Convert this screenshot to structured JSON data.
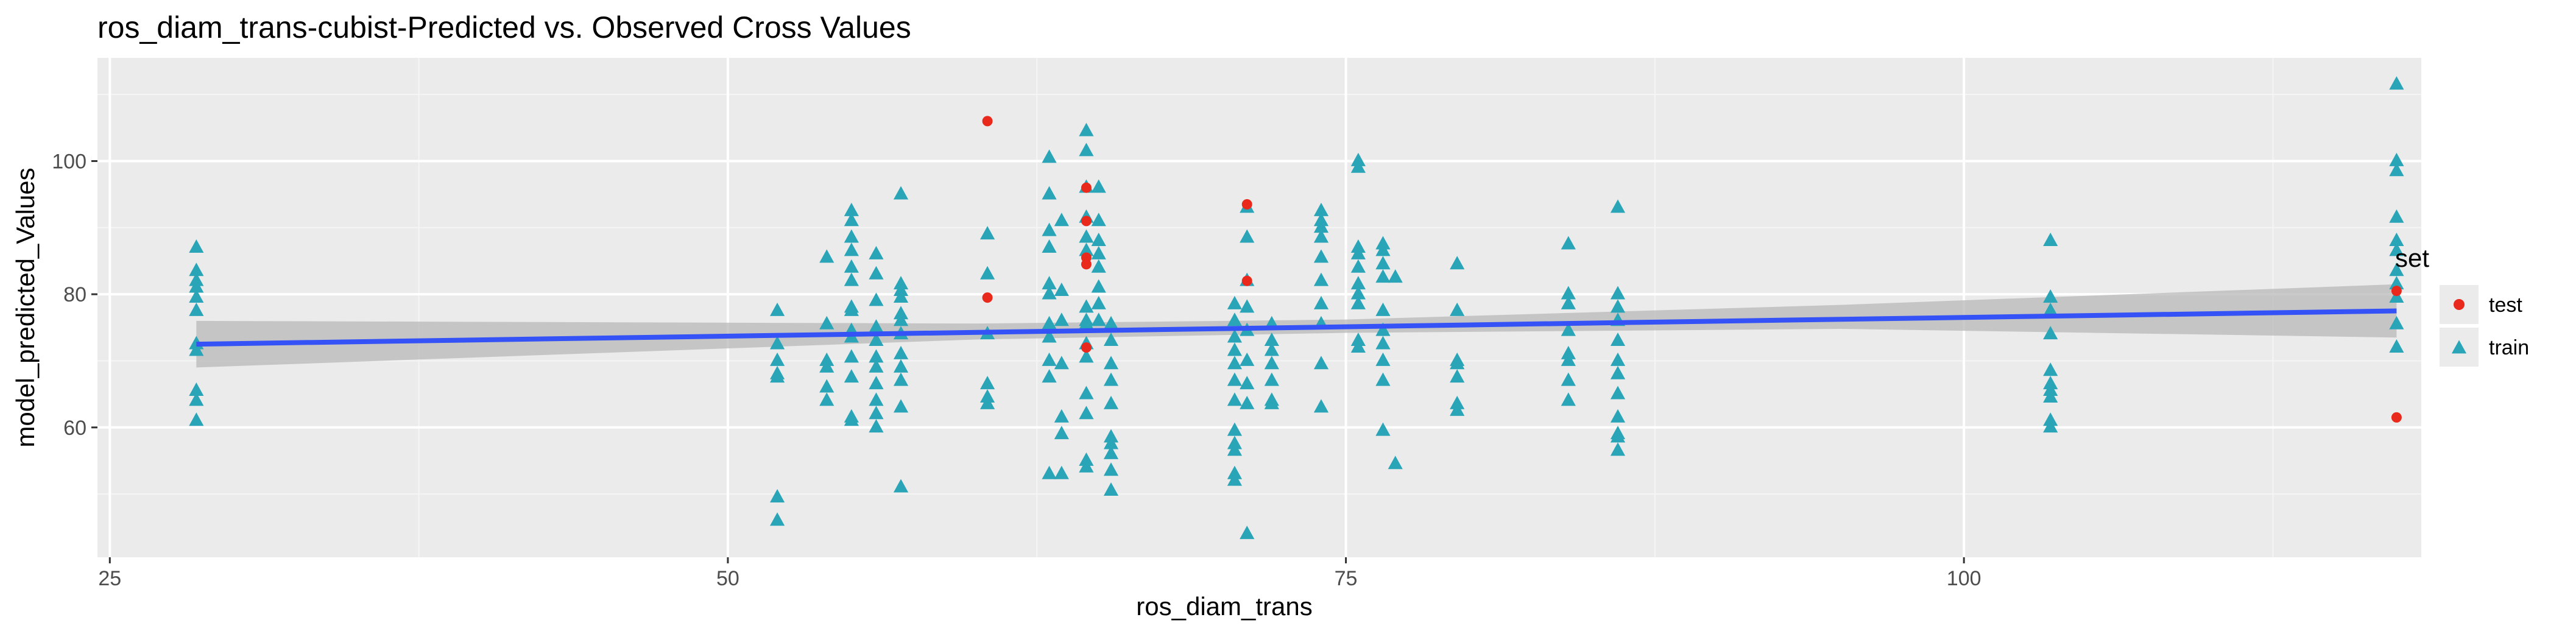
{
  "chart_data": {
    "type": "scatter",
    "title": "ros_diam_trans-cubist-Predicted vs. Observed Cross Values",
    "xlabel": "ros_diam_trans",
    "ylabel": "model_predicted_Values",
    "xlim": [
      24.5,
      118.5
    ],
    "ylim": [
      40.5,
      115.5
    ],
    "x_ticks": [
      25,
      50,
      75,
      100
    ],
    "y_ticks": [
      60,
      80,
      100
    ],
    "x_tick_labels": [
      "25",
      "50",
      "75",
      "100"
    ],
    "y_tick_labels": [
      "60",
      "80",
      "100"
    ],
    "grid": true,
    "legend": {
      "title": "set",
      "position": "right",
      "entries": [
        {
          "label": "test",
          "color": "#F8766D",
          "marker": "circle"
        },
        {
          "label": "train",
          "color": "#00BFC4",
          "marker": "triangle"
        }
      ]
    },
    "colors": {
      "test": "#e8291c",
      "train": "#2aa5b8",
      "fit": "#3452f5",
      "ribbon": "#b8b8b8",
      "panel": "#ebebeb"
    },
    "series": [
      {
        "name": "test",
        "points": [
          [
            60.5,
            106
          ],
          [
            60.5,
            79.5
          ],
          [
            64.5,
            96
          ],
          [
            64.5,
            91
          ],
          [
            64.5,
            85.5
          ],
          [
            64.5,
            84.5
          ],
          [
            64.5,
            72
          ],
          [
            71,
            93.5
          ],
          [
            71,
            82
          ],
          [
            117.5,
            80.5
          ],
          [
            117.5,
            61.5
          ]
        ]
      },
      {
        "name": "train",
        "points": [
          [
            28.5,
            87
          ],
          [
            28.5,
            83.5
          ],
          [
            28.5,
            82
          ],
          [
            28.5,
            81
          ],
          [
            28.5,
            79.5
          ],
          [
            28.5,
            77.5
          ],
          [
            28.5,
            72.5
          ],
          [
            28.5,
            71.5
          ],
          [
            28.5,
            65.5
          ],
          [
            28.5,
            64
          ],
          [
            28.5,
            61
          ],
          [
            52,
            77.5
          ],
          [
            52,
            72.5
          ],
          [
            52,
            70
          ],
          [
            52,
            68
          ],
          [
            52,
            67.5
          ],
          [
            52,
            49.5
          ],
          [
            52,
            46
          ],
          [
            54,
            85.5
          ],
          [
            54,
            75.5
          ],
          [
            54,
            70
          ],
          [
            54,
            69
          ],
          [
            54,
            66
          ],
          [
            54,
            64
          ],
          [
            55,
            92.5
          ],
          [
            55,
            91
          ],
          [
            55,
            88.5
          ],
          [
            55,
            86.5
          ],
          [
            55,
            84
          ],
          [
            55,
            82
          ],
          [
            55,
            78
          ],
          [
            55,
            77.5
          ],
          [
            55,
            74.5
          ],
          [
            55,
            73.5
          ],
          [
            55,
            70.5
          ],
          [
            55,
            67.5
          ],
          [
            55,
            61.5
          ],
          [
            55,
            61
          ],
          [
            56,
            86
          ],
          [
            56,
            83
          ],
          [
            56,
            79
          ],
          [
            56,
            75
          ],
          [
            56,
            73
          ],
          [
            56,
            70.5
          ],
          [
            56,
            69
          ],
          [
            56,
            66.5
          ],
          [
            56,
            64
          ],
          [
            56,
            62
          ],
          [
            56,
            60
          ],
          [
            57,
            95
          ],
          [
            57,
            81.5
          ],
          [
            57,
            80.5
          ],
          [
            57,
            79.5
          ],
          [
            57,
            77
          ],
          [
            57,
            76
          ],
          [
            57,
            74
          ],
          [
            57,
            71
          ],
          [
            57,
            69
          ],
          [
            57,
            67
          ],
          [
            57,
            63
          ],
          [
            57,
            51
          ],
          [
            60.5,
            89
          ],
          [
            60.5,
            83
          ],
          [
            60.5,
            74
          ],
          [
            60.5,
            66.5
          ],
          [
            60.5,
            64.5
          ],
          [
            60.5,
            63.5
          ],
          [
            63,
            100.5
          ],
          [
            63,
            95
          ],
          [
            63,
            89.5
          ],
          [
            63,
            87
          ],
          [
            63,
            81.5
          ],
          [
            63,
            80
          ],
          [
            63,
            75.5
          ],
          [
            63,
            73.5
          ],
          [
            63,
            70
          ],
          [
            63,
            67.5
          ],
          [
            63,
            53
          ],
          [
            63.5,
            91
          ],
          [
            63.5,
            80.5
          ],
          [
            63.5,
            76
          ],
          [
            63.5,
            69.5
          ],
          [
            63.5,
            61.5
          ],
          [
            63.5,
            59
          ],
          [
            63.5,
            53
          ],
          [
            64.5,
            104.5
          ],
          [
            64.5,
            101.5
          ],
          [
            64.5,
            96
          ],
          [
            64.5,
            91.5
          ],
          [
            64.5,
            88.5
          ],
          [
            64.5,
            86.5
          ],
          [
            64.5,
            78
          ],
          [
            64.5,
            76
          ],
          [
            64.5,
            75.5
          ],
          [
            64.5,
            72.5
          ],
          [
            64.5,
            70.5
          ],
          [
            64.5,
            65
          ],
          [
            64.5,
            62
          ],
          [
            64.5,
            55
          ],
          [
            64.5,
            54
          ],
          [
            65,
            96
          ],
          [
            65,
            91
          ],
          [
            65,
            88
          ],
          [
            65,
            86
          ],
          [
            65,
            84
          ],
          [
            65,
            81
          ],
          [
            65,
            78.5
          ],
          [
            65,
            76
          ],
          [
            65.5,
            75.5
          ],
          [
            65.5,
            73
          ],
          [
            65.5,
            69.5
          ],
          [
            65.5,
            67
          ],
          [
            65.5,
            63.5
          ],
          [
            65.5,
            58.5
          ],
          [
            65.5,
            57.5
          ],
          [
            65.5,
            56
          ],
          [
            65.5,
            53.5
          ],
          [
            65.5,
            50.5
          ],
          [
            70.5,
            78.5
          ],
          [
            70.5,
            76
          ],
          [
            70.5,
            73.5
          ],
          [
            70.5,
            71.5
          ],
          [
            70.5,
            69.5
          ],
          [
            70.5,
            67
          ],
          [
            70.5,
            64
          ],
          [
            70.5,
            59.5
          ],
          [
            70.5,
            57.5
          ],
          [
            70.5,
            53
          ],
          [
            70.5,
            52
          ],
          [
            70.5,
            56.5
          ],
          [
            71,
            93
          ],
          [
            71,
            88.5
          ],
          [
            71,
            82
          ],
          [
            71,
            78
          ],
          [
            71,
            74.5
          ],
          [
            71,
            70
          ],
          [
            71,
            66.5
          ],
          [
            71,
            63.5
          ],
          [
            71,
            44
          ],
          [
            72,
            75.5
          ],
          [
            72,
            73
          ],
          [
            72,
            71.5
          ],
          [
            72,
            69.5
          ],
          [
            72,
            67
          ],
          [
            72,
            64
          ],
          [
            72,
            63.5
          ],
          [
            74,
            92.5
          ],
          [
            74,
            91
          ],
          [
            74,
            90
          ],
          [
            74,
            88.5
          ],
          [
            74,
            85.5
          ],
          [
            74,
            82
          ],
          [
            74,
            78.5
          ],
          [
            74,
            75.5
          ],
          [
            74,
            69.5
          ],
          [
            74,
            63
          ],
          [
            75.5,
            100
          ],
          [
            75.5,
            99
          ],
          [
            75.5,
            87
          ],
          [
            75.5,
            86
          ],
          [
            75.5,
            84
          ],
          [
            75.5,
            81.5
          ],
          [
            75.5,
            80
          ],
          [
            75.5,
            78.5
          ],
          [
            75.5,
            73
          ],
          [
            75.5,
            72
          ],
          [
            76.5,
            87.5
          ],
          [
            76.5,
            86.5
          ],
          [
            76.5,
            84.5
          ],
          [
            76.5,
            82.5
          ],
          [
            76.5,
            77.5
          ],
          [
            76.5,
            74.5
          ],
          [
            76.5,
            72.5
          ],
          [
            76.5,
            70
          ],
          [
            76.5,
            67
          ],
          [
            76.5,
            59.5
          ],
          [
            77,
            82.5
          ],
          [
            77,
            54.5
          ],
          [
            79.5,
            84.5
          ],
          [
            79.5,
            77.5
          ],
          [
            79.5,
            70
          ],
          [
            79.5,
            69.5
          ],
          [
            79.5,
            67.5
          ],
          [
            79.5,
            63.5
          ],
          [
            79.5,
            62.5
          ],
          [
            84,
            87.5
          ],
          [
            84,
            80
          ],
          [
            84,
            78.5
          ],
          [
            84,
            74.5
          ],
          [
            84,
            71
          ],
          [
            84,
            70
          ],
          [
            84,
            67
          ],
          [
            84,
            64
          ],
          [
            86,
            93
          ],
          [
            86,
            80
          ],
          [
            86,
            78
          ],
          [
            86,
            76
          ],
          [
            86,
            73
          ],
          [
            86,
            70
          ],
          [
            86,
            68
          ],
          [
            86,
            65
          ],
          [
            86,
            61.5
          ],
          [
            86,
            59
          ],
          [
            86,
            58.5
          ],
          [
            86,
            56.5
          ],
          [
            103.5,
            88
          ],
          [
            103.5,
            79.5
          ],
          [
            103.5,
            77.5
          ],
          [
            103.5,
            74
          ],
          [
            103.5,
            68.5
          ],
          [
            103.5,
            66.5
          ],
          [
            103.5,
            65.5
          ],
          [
            103.5,
            64.5
          ],
          [
            103.5,
            61
          ],
          [
            103.5,
            60
          ],
          [
            117.5,
            111.5
          ],
          [
            117.5,
            100
          ],
          [
            117.5,
            98.5
          ],
          [
            117.5,
            91.5
          ],
          [
            117.5,
            88
          ],
          [
            117.5,
            86.5
          ],
          [
            117.5,
            83.5
          ],
          [
            117.5,
            81.5
          ],
          [
            117.5,
            79.5
          ],
          [
            117.5,
            75.5
          ],
          [
            117.5,
            72
          ]
        ]
      }
    ],
    "fit": {
      "method": "lm",
      "line": [
        [
          28.5,
          72.5
        ],
        [
          117.5,
          77.5
        ]
      ],
      "ribbon_upper": [
        [
          28.5,
          76
        ],
        [
          60,
          75.6
        ],
        [
          75,
          76.2
        ],
        [
          95,
          78.4
        ],
        [
          117.5,
          81.5
        ]
      ],
      "ribbon_lower": [
        [
          28.5,
          69
        ],
        [
          60,
          73.2
        ],
        [
          75,
          74.2
        ],
        [
          95,
          74.8
        ],
        [
          117.5,
          73.5
        ]
      ]
    }
  }
}
